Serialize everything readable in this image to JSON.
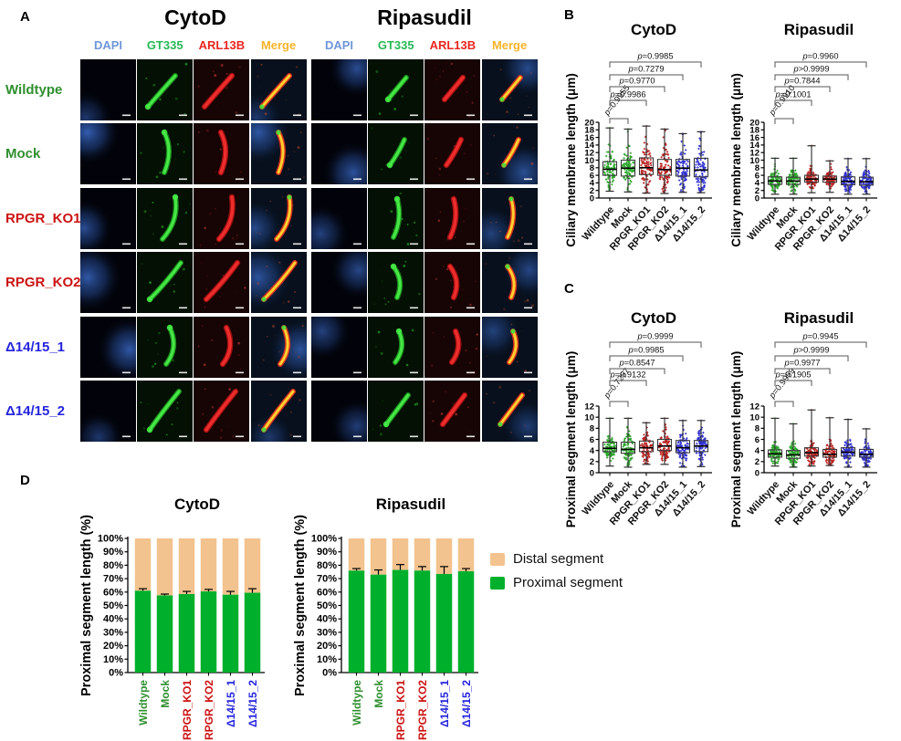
{
  "panels": {
    "a": "A",
    "b": "B",
    "c": "C",
    "d": "D"
  },
  "panelA": {
    "group_titles": [
      "CytoD",
      "Ripasudil"
    ],
    "channel_headers": [
      {
        "label": "DAPI",
        "color": "#6E96D9"
      },
      {
        "label": "GT335",
        "color": "#27B857"
      },
      {
        "label": "ARL13B",
        "color": "#E8261F"
      },
      {
        "label": "Merge",
        "color": "#F7B32A"
      }
    ],
    "row_labels": [
      {
        "label": "Wildtype",
        "color": "#2F8F2F"
      },
      {
        "label": "Mock",
        "color": "#2F8F2F"
      },
      {
        "label": "RPGR_KO1",
        "color": "#CC1212"
      },
      {
        "label": "RPGR_KO2",
        "color": "#CC1212"
      },
      {
        "label": "Δ14/15_1",
        "color": "#2525DD"
      },
      {
        "label": "Δ14/15_2",
        "color": "#2525DD"
      }
    ]
  },
  "legend": {
    "items": [
      {
        "label": "Distal segment",
        "color": "#F2C38E"
      },
      {
        "label": "Proximal segment",
        "color": "#00B02C"
      }
    ]
  },
  "chart_data": [
    {
      "id": "B-cytod",
      "panel": "B",
      "type": "box-scatter",
      "title": "CytoD",
      "ylabel": "Ciliary membrane length (μm)",
      "ylim": [
        0,
        20
      ],
      "ytick": 2,
      "categories": [
        "Wildtype",
        "Mock",
        "RPGR_KO1",
        "RPGR_KO2",
        "Δ14/15_1",
        "Δ14/15_2"
      ],
      "category_colors": [
        "#21A121",
        "#21A121",
        "#B51515",
        "#B51515",
        "#2525CE",
        "#2525CE"
      ],
      "boxes": [
        {
          "min": 1.8,
          "q1": 6.0,
          "median": 7.6,
          "q3": 9.6,
          "max": 18.5
        },
        {
          "min": 1.6,
          "q1": 5.8,
          "median": 7.9,
          "q3": 10.0,
          "max": 18.2
        },
        {
          "min": 1.3,
          "q1": 6.2,
          "median": 8.0,
          "q3": 10.6,
          "max": 19.0
        },
        {
          "min": 1.2,
          "q1": 6.0,
          "median": 7.5,
          "q3": 10.2,
          "max": 18.2
        },
        {
          "min": 1.5,
          "q1": 5.8,
          "median": 7.9,
          "q3": 10.2,
          "max": 17.0
        },
        {
          "min": 1.4,
          "q1": 5.6,
          "median": 7.4,
          "q3": 10.5,
          "max": 17.5
        }
      ],
      "comparisons": [
        {
          "from": "Wildtype",
          "to": "Mock",
          "label": "p=0.9955",
          "rotated": true
        },
        {
          "from": "Wildtype",
          "to": "RPGR_KO1",
          "label": "p=0.9986"
        },
        {
          "from": "Wildtype",
          "to": "RPGR_KO2",
          "label": "p=0.9770"
        },
        {
          "from": "Wildtype",
          "to": "Δ14/15_1",
          "label": "p=0.7279"
        },
        {
          "from": "Wildtype",
          "to": "Δ14/15_2",
          "label": "p=0.9985"
        }
      ]
    },
    {
      "id": "B-rip",
      "panel": "B",
      "type": "box-scatter",
      "title": "Ripasudil",
      "ylabel": "Ciliary membrane length (μm)",
      "ylim": [
        0,
        20
      ],
      "ytick": 2,
      "categories": [
        "Wildtype",
        "Mock",
        "RPGR_KO1",
        "RPGR_KO2",
        "Δ14/15_1",
        "Δ14/15_2"
      ],
      "category_colors": [
        "#21A121",
        "#21A121",
        "#B51515",
        "#B51515",
        "#2525CE",
        "#2525CE"
      ],
      "boxes": [
        {
          "min": 1.0,
          "q1": 3.6,
          "median": 4.5,
          "q3": 5.6,
          "max": 10.5
        },
        {
          "min": 1.0,
          "q1": 3.6,
          "median": 4.5,
          "q3": 5.5,
          "max": 10.5
        },
        {
          "min": 1.4,
          "q1": 4.2,
          "median": 5.0,
          "q3": 6.0,
          "max": 13.8
        },
        {
          "min": 1.5,
          "q1": 4.2,
          "median": 5.0,
          "q3": 5.8,
          "max": 9.8
        },
        {
          "min": 1.0,
          "q1": 3.5,
          "median": 4.4,
          "q3": 5.6,
          "max": 10.4
        },
        {
          "min": 1.0,
          "q1": 3.4,
          "median": 4.3,
          "q3": 5.5,
          "max": 10.4
        }
      ],
      "comparisons": [
        {
          "from": "Wildtype",
          "to": "Mock",
          "label": "p=0.9910",
          "rotated": true
        },
        {
          "from": "Wildtype",
          "to": "RPGR_KO1",
          "label": "p=0.1001"
        },
        {
          "from": "Wildtype",
          "to": "RPGR_KO2",
          "label": "p=0.7844"
        },
        {
          "from": "Wildtype",
          "to": "Δ14/15_1",
          "label": "p>0.9999"
        },
        {
          "from": "Wildtype",
          "to": "Δ14/15_2",
          "label": "p=0.9960"
        }
      ]
    },
    {
      "id": "C-cytod",
      "panel": "C",
      "type": "box-scatter",
      "title": "CytoD",
      "ylabel": "Proximal segment length (μm)",
      "ylim": [
        0,
        12
      ],
      "ytick": 2,
      "categories": [
        "Wildtype",
        "Mock",
        "RPGR_KO1",
        "RPGR_KO2",
        "Δ14/15_1",
        "Δ14/15_2"
      ],
      "category_colors": [
        "#21A121",
        "#21A121",
        "#B51515",
        "#B51515",
        "#2525CE",
        "#2525CE"
      ],
      "boxes": [
        {
          "min": 1.2,
          "q1": 3.8,
          "median": 4.4,
          "q3": 5.5,
          "max": 9.8
        },
        {
          "min": 1.0,
          "q1": 3.5,
          "median": 4.2,
          "q3": 5.5,
          "max": 9.8
        },
        {
          "min": 1.5,
          "q1": 3.8,
          "median": 4.5,
          "q3": 5.7,
          "max": 9.0
        },
        {
          "min": 1.5,
          "q1": 4.0,
          "median": 4.8,
          "q3": 6.0,
          "max": 9.8
        },
        {
          "min": 1.0,
          "q1": 3.6,
          "median": 4.5,
          "q3": 5.8,
          "max": 9.4
        },
        {
          "min": 1.1,
          "q1": 3.8,
          "median": 4.8,
          "q3": 5.8,
          "max": 9.4
        }
      ],
      "comparisons": [
        {
          "from": "Wildtype",
          "to": "Mock",
          "label": "p=0.7257",
          "rotated": true
        },
        {
          "from": "Wildtype",
          "to": "RPGR_KO1",
          "label": "p=0.9132"
        },
        {
          "from": "Wildtype",
          "to": "RPGR_KO2",
          "label": "p=0.8547"
        },
        {
          "from": "Wildtype",
          "to": "Δ14/15_1",
          "label": "p=0.9985"
        },
        {
          "from": "Wildtype",
          "to": "Δ14/15_2",
          "label": "p=0.9999"
        }
      ]
    },
    {
      "id": "C-rip",
      "panel": "C",
      "type": "box-scatter",
      "title": "Ripasudil",
      "ylabel": "Proximal segment length (μm)",
      "ylim": [
        0,
        12
      ],
      "ytick": 2,
      "categories": [
        "Wildtype",
        "Mock",
        "RPGR_KO1",
        "RPGR_KO2",
        "Δ14/15_1",
        "Δ14/15_2"
      ],
      "category_colors": [
        "#21A121",
        "#21A121",
        "#B51515",
        "#B51515",
        "#2525CE",
        "#2525CE"
      ],
      "boxes": [
        {
          "min": 1.2,
          "q1": 2.8,
          "median": 3.4,
          "q3": 4.1,
          "max": 9.8
        },
        {
          "min": 1.0,
          "q1": 2.6,
          "median": 3.2,
          "q3": 4.0,
          "max": 8.8
        },
        {
          "min": 1.2,
          "q1": 3.0,
          "median": 3.6,
          "q3": 4.5,
          "max": 11.3
        },
        {
          "min": 1.3,
          "q1": 2.8,
          "median": 3.3,
          "q3": 4.2,
          "max": 9.9
        },
        {
          "min": 1.0,
          "q1": 3.0,
          "median": 3.7,
          "q3": 4.5,
          "max": 9.6
        },
        {
          "min": 1.0,
          "q1": 2.8,
          "median": 3.3,
          "q3": 4.2,
          "max": 7.9
        }
      ],
      "comparisons": [
        {
          "from": "Wildtype",
          "to": "Mock",
          "label": "p=0.9959",
          "rotated": true
        },
        {
          "from": "Wildtype",
          "to": "RPGR_KO1",
          "label": "p=0.1905"
        },
        {
          "from": "Wildtype",
          "to": "RPGR_KO2",
          "label": "p=0.9977"
        },
        {
          "from": "Wildtype",
          "to": "Δ14/15_1",
          "label": "p>0.9999"
        },
        {
          "from": "Wildtype",
          "to": "Δ14/15_2",
          "label": "p=0.9945"
        }
      ]
    },
    {
      "id": "D-cytod",
      "panel": "D",
      "type": "stacked-bar",
      "title": "CytoD",
      "ylabel": "Proximal segment length (%)",
      "yticks": [
        "0%",
        "10%",
        "20%",
        "30%",
        "40%",
        "50%",
        "60%",
        "70%",
        "80%",
        "90%",
        "100%"
      ],
      "categories": [
        "Wildtype",
        "Mock",
        "RPGR_KO1",
        "RPGR_KO2",
        "Δ14/15_1",
        "Δ14/15_2"
      ],
      "category_colors": [
        "#2F8F2F",
        "#2F8F2F",
        "#CC1212",
        "#CC1212",
        "#2525DD",
        "#2525DD"
      ],
      "series": [
        {
          "name": "Proximal segment",
          "color": "#00B02C",
          "values": [
            61,
            57.5,
            58.5,
            60.5,
            58,
            59.5
          ]
        },
        {
          "name": "Distal segment",
          "color": "#F2C38E",
          "values": [
            39,
            42.5,
            41.5,
            39.5,
            42,
            40.5
          ]
        }
      ],
      "errors": [
        1.5,
        1,
        2,
        1.5,
        2.5,
        3
      ]
    },
    {
      "id": "D-rip",
      "panel": "D",
      "type": "stacked-bar",
      "title": "Ripasudil",
      "ylabel": "Proximal segment length (%)",
      "yticks": [
        "0%",
        "10%",
        "20%",
        "30%",
        "40%",
        "50%",
        "60%",
        "70%",
        "80%",
        "90%",
        "100%"
      ],
      "categories": [
        "Wildtype",
        "Mock",
        "RPGR_KO1",
        "RPGR_KO2",
        "Δ14/15_1",
        "Δ14/15_2"
      ],
      "category_colors": [
        "#2F8F2F",
        "#2F8F2F",
        "#CC1212",
        "#CC1212",
        "#2525DD",
        "#2525DD"
      ],
      "series": [
        {
          "name": "Proximal segment",
          "color": "#00B02C",
          "values": [
            76,
            73,
            76.5,
            76,
            73.5,
            75.5
          ]
        },
        {
          "name": "Distal segment",
          "color": "#F2C38E",
          "values": [
            24,
            27,
            23.5,
            24,
            26.5,
            24.5
          ]
        }
      ],
      "errors": [
        1.5,
        3.5,
        4,
        3,
        5.5,
        2
      ]
    }
  ]
}
